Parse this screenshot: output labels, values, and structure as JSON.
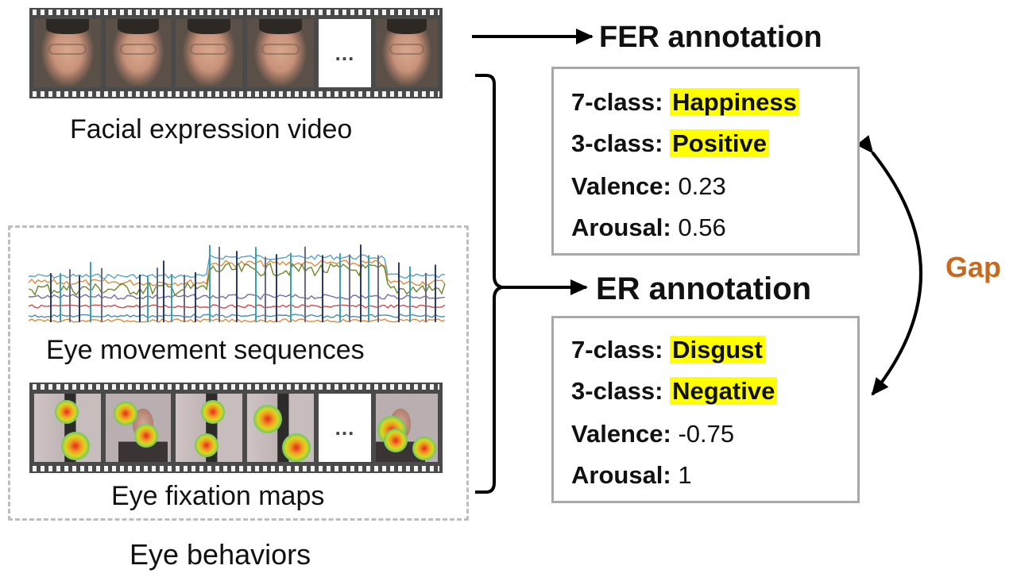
{
  "video": {
    "caption": "Facial expression video",
    "dots": "..."
  },
  "eye": {
    "sequences_caption": "Eye movement sequences",
    "fixation_caption": "Eye fixation maps",
    "group_caption": "Eye behaviors",
    "dots": "..."
  },
  "fer": {
    "title": "FER annotation",
    "class7_key": "7-class:",
    "class7_val": "Happiness",
    "class3_key": "3-class:",
    "class3_val": "Positive",
    "valence_key": "Valence:",
    "valence_val": "0.23",
    "arousal_key": "Arousal:",
    "arousal_val": "0.56"
  },
  "er": {
    "title": "ER annotation",
    "class7_key": "7-class:",
    "class7_val": "Disgust",
    "class3_key": "3-class:",
    "class3_val": "Negative",
    "valence_key": "Valence:",
    "valence_val": "-0.75",
    "arousal_key": "Arousal:",
    "arousal_val": "1"
  },
  "gap_label": "Gap",
  "colors": {
    "highlight": "#ffff00",
    "gap": "#c56a1e",
    "box_border": "#a8a8a8"
  }
}
